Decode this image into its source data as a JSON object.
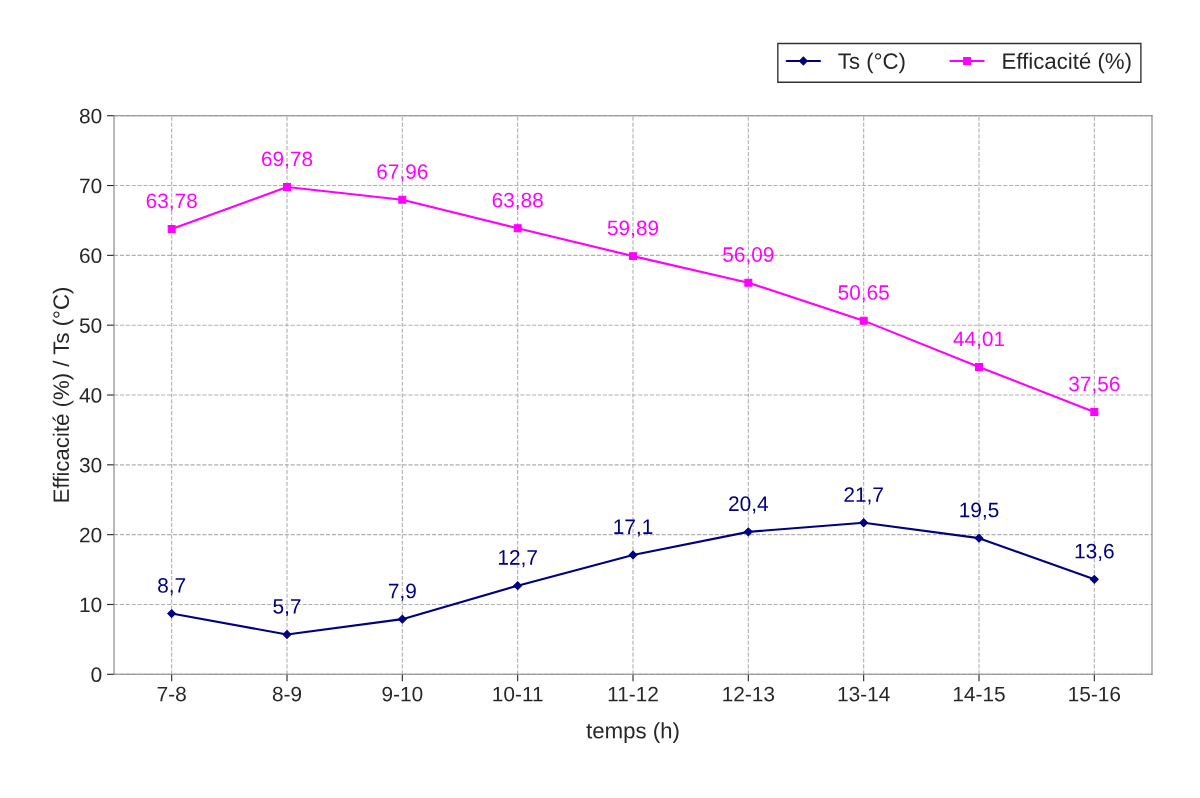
{
  "chart_data": {
    "type": "line",
    "xlabel": "temps (h)",
    "ylabel": "Efficacité (%) / Ts (°C)",
    "categories": [
      "7-8",
      "8-9",
      "9-10",
      "10-11",
      "11-12",
      "12-13",
      "13-14",
      "14-15",
      "15-16"
    ],
    "series": [
      {
        "name": "Ts (°C)",
        "color": "#000080",
        "marker": "diamond",
        "values": [
          8.7,
          5.7,
          7.9,
          12.7,
          17.1,
          20.4,
          21.7,
          19.5,
          13.6
        ],
        "value_labels": [
          "8,7",
          "5,7",
          "7,9",
          "12,7",
          "17,1",
          "20,4",
          "21,7",
          "19,5",
          "13,6"
        ]
      },
      {
        "name": "Efficacité (%)",
        "color": "#ff00ff",
        "marker": "square",
        "values": [
          63.78,
          69.78,
          67.96,
          63.88,
          59.89,
          56.09,
          50.65,
          44.01,
          37.56
        ],
        "value_labels": [
          "63,78",
          "69,78",
          "67,96",
          "63,88",
          "59,89",
          "56,09",
          "50,65",
          "44,01",
          "37,56"
        ]
      }
    ],
    "ylim": [
      0,
      80
    ],
    "yticks": [
      0,
      10,
      20,
      30,
      40,
      50,
      60,
      70,
      80
    ],
    "grid": true,
    "legend": "top right",
    "line_style": "solid"
  }
}
